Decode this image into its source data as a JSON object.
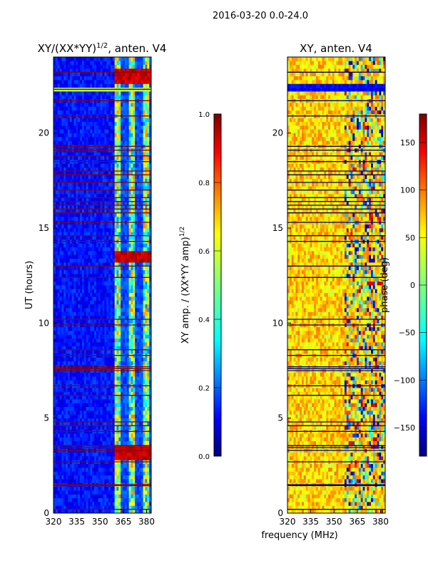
{
  "page": {
    "title": "2016-03-20 0.0-24.0"
  },
  "chart_data": [
    {
      "type": "heatmap",
      "id": "amp",
      "title": "XY/(XX*YY)^1/2, anten. V4",
      "title_main": "XY/(XX*YY)",
      "title_sup": "1/2",
      "title_rest": ", anten. V4",
      "ylabel": "UT (hours)",
      "xlim": [
        320,
        383
      ],
      "ylim": [
        0,
        24
      ],
      "xticks": [
        320,
        335,
        350,
        365,
        380
      ],
      "yticks": [
        0,
        5,
        10,
        15,
        20
      ],
      "colorbar": {
        "label": "XY amp. / (XX*YY amp)^1/2",
        "label_main": "XY amp. / (XX*YY amp)",
        "label_sup": "1/2",
        "range": [
          0.0,
          1.0
        ],
        "ticks": [
          "0.0",
          "0.2",
          "0.4",
          "0.6",
          "0.8",
          "1.0"
        ],
        "tick_values": [
          0.0,
          0.2,
          0.4,
          0.6,
          0.8,
          1.0
        ],
        "colormap": "jet"
      },
      "flagged_rows_hours": [
        0.2,
        1.45,
        1.5,
        2.7,
        3.3,
        3.45,
        3.55,
        4.3,
        4.6,
        4.8,
        6.2,
        6.7,
        7.5,
        7.6,
        7.7,
        8.3,
        8.6,
        9.9,
        10.2,
        12.4,
        13.0,
        14.3,
        14.6,
        15.3,
        15.8,
        16.0,
        16.2,
        16.4,
        16.6,
        17.0,
        17.4,
        17.8,
        18.0,
        18.5,
        18.8,
        19.1,
        19.3,
        20.9,
        21.7,
        22.3,
        23.2
      ],
      "bright_band_hours": [
        22.2,
        22.4
      ],
      "high_amp_row_hours": [
        3.2,
        13.5,
        23.0
      ],
      "active_freq_band_mhz": [
        359,
        383
      ]
    },
    {
      "type": "heatmap",
      "id": "phase",
      "title": "XY, anten. V4",
      "xlabel": "frequency (MHz)",
      "xlim": [
        320,
        383
      ],
      "ylim": [
        0,
        24
      ],
      "xticks": [
        320,
        335,
        350,
        365,
        380
      ],
      "yticks": [
        0,
        5,
        10,
        15,
        20
      ],
      "colorbar": {
        "label": "phase (deg)",
        "range": [
          -180,
          180
        ],
        "ticks": [
          "150",
          "100",
          "50",
          "0",
          "−50",
          "−100",
          "−150"
        ],
        "tick_values": [
          150,
          100,
          50,
          0,
          -50,
          -100,
          -150
        ],
        "colormap": "jet"
      },
      "flagged_rows_hours": [
        0.2,
        1.45,
        1.5,
        2.7,
        3.3,
        3.45,
        3.55,
        4.3,
        4.6,
        4.8,
        6.2,
        6.7,
        7.5,
        7.6,
        7.7,
        8.3,
        8.6,
        9.9,
        10.2,
        12.4,
        13.0,
        14.3,
        14.6,
        15.3,
        15.8,
        16.0,
        16.2,
        16.4,
        16.6,
        17.0,
        17.4,
        17.8,
        18.0,
        18.5,
        18.8,
        19.1,
        19.3,
        20.9,
        21.7,
        22.3,
        23.2
      ],
      "dark_band_hours": [
        22.2,
        22.6
      ],
      "typical_phase_deg": 60,
      "noisy_freq_band_mhz": [
        357,
        383
      ]
    }
  ],
  "colors": {
    "jet": [
      "#00007f",
      "#0000ff",
      "#007fff",
      "#00ffff",
      "#7fff7f",
      "#ffff00",
      "#ff7f00",
      "#ff0000",
      "#7f0000"
    ]
  }
}
